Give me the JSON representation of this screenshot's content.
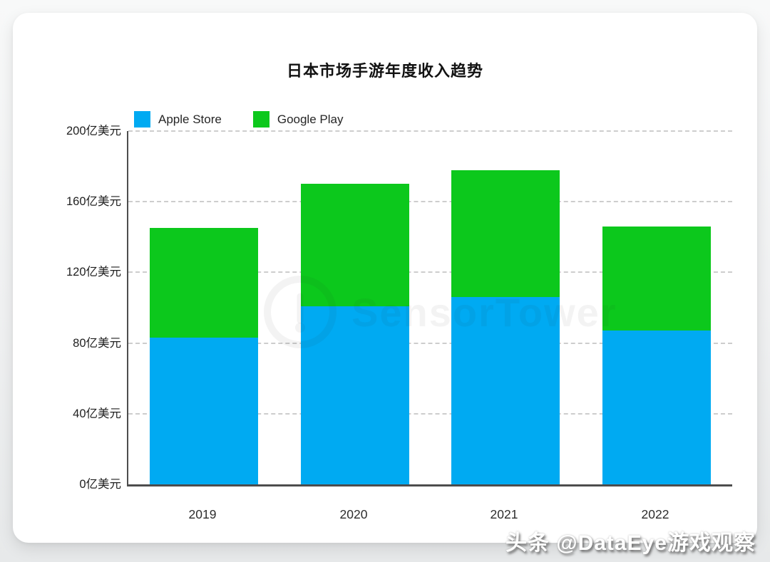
{
  "title": "日本市场手游年度收入趋势",
  "legend": {
    "items": [
      {
        "label": "Apple Store",
        "color": "#00aaf2"
      },
      {
        "label": "Google Play",
        "color": "#0cc81c"
      }
    ]
  },
  "chart_data": {
    "type": "bar",
    "stacked": true,
    "title": "日本市场手游年度收入趋势",
    "categories": [
      "2019",
      "2020",
      "2021",
      "2022"
    ],
    "series": [
      {
        "name": "Apple Store",
        "color": "#00aaf2",
        "values": [
          83,
          101,
          106,
          87
        ]
      },
      {
        "name": "Google Play",
        "color": "#0cc81c",
        "values": [
          62,
          69,
          72,
          59
        ]
      }
    ],
    "totals": [
      145,
      170,
      178,
      146
    ],
    "unit": "亿美元",
    "ylim": [
      0,
      200
    ],
    "yticks": [
      0,
      40,
      80,
      120,
      160,
      200
    ],
    "ytick_labels": [
      "0亿美元",
      "40亿美元",
      "80亿美元",
      "120亿美元",
      "160亿美元",
      "200亿美元"
    ],
    "grid": "horizontal-dashed",
    "legend_position": "top-left"
  },
  "watermark": {
    "text": "SensorTower"
  },
  "byline": {
    "text": "头条 @DataEye游戏观察"
  }
}
